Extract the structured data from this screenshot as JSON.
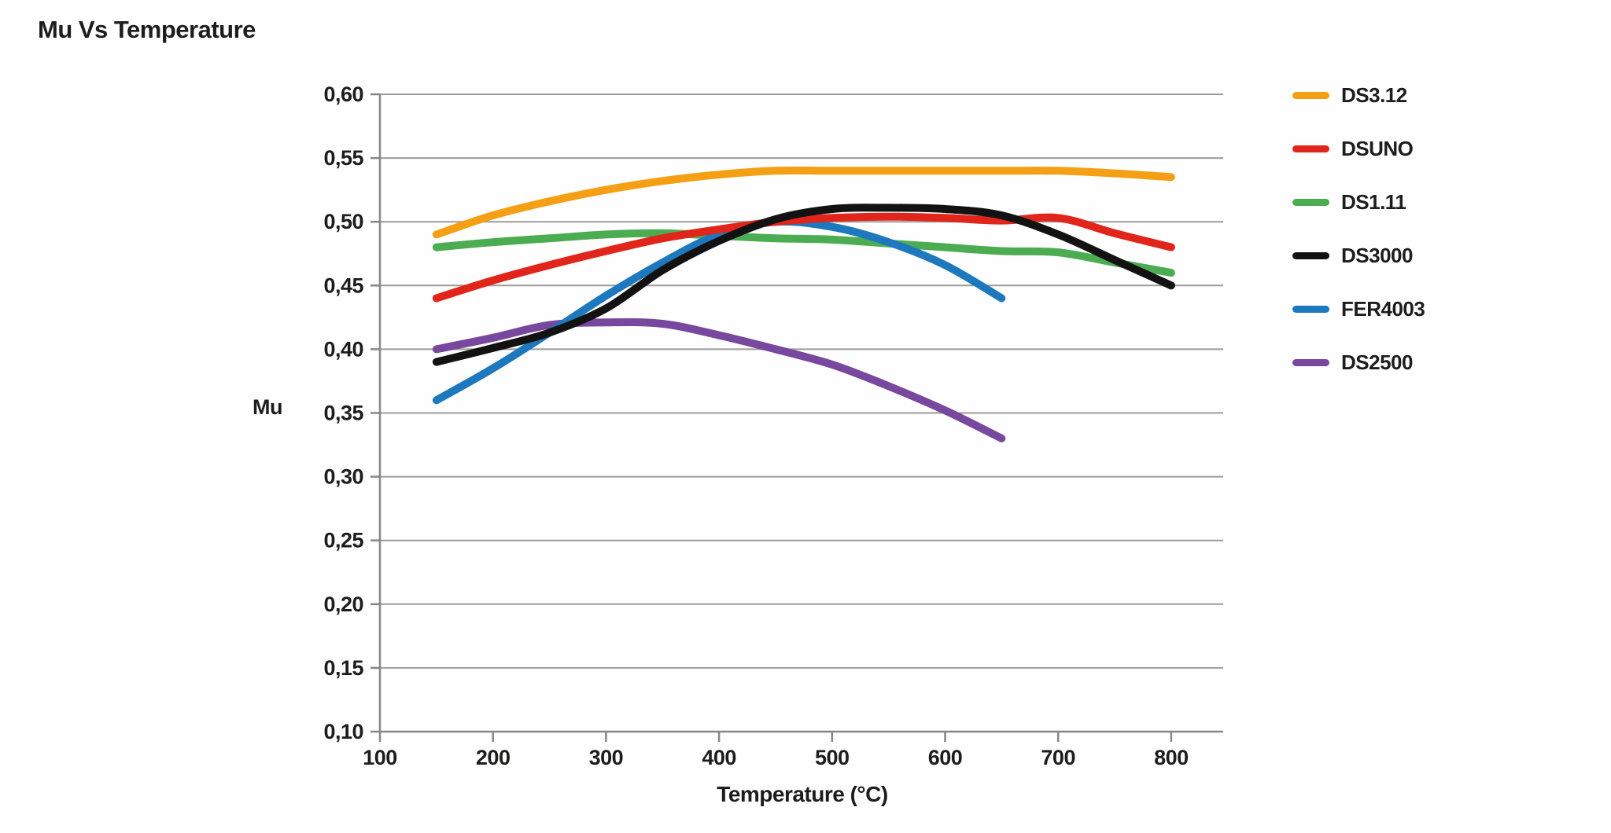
{
  "title": "Mu Vs Temperature",
  "axes": {
    "y_label": "Mu",
    "x_label": "Temperature (°C)",
    "y_tick_labels": [
      "0,60",
      "0,55",
      "0,50",
      "0,45",
      "0,40",
      "0,35",
      "0,30",
      "0,25",
      "0,20",
      "0,15",
      "0,10"
    ],
    "x_tick_labels": [
      "100",
      "200",
      "300",
      "400",
      "500",
      "600",
      "700",
      "800"
    ]
  },
  "colors": {
    "gridline": "#9c9c9b",
    "axis": "#878787",
    "text": "#1d1d1b",
    "background": "#fefefe"
  },
  "chart_data": {
    "type": "line",
    "title": "Mu Vs Temperature",
    "xlabel": "Temperature (°C)",
    "ylabel": "Mu",
    "xlim": [
      100,
      846
    ],
    "ylim": [
      0.1,
      0.6
    ],
    "x_ticks": [
      100,
      200,
      300,
      400,
      500,
      600,
      700,
      800
    ],
    "y_tick_step": 0.05,
    "decimal_separator": ",",
    "grid": "horizontal",
    "legend_position": "right",
    "line_width": 10,
    "draw_order": [
      "DS3.12",
      "DS2500",
      "DS1.11",
      "FER4003",
      "DSUNO",
      "DS3000"
    ],
    "series": [
      {
        "name": "DS3.12",
        "color": "#f5a014",
        "x": [
          150,
          200,
          250,
          300,
          350,
          400,
          450,
          500,
          550,
          600,
          650,
          700,
          750,
          800
        ],
        "values": [
          0.49,
          0.505,
          0.516,
          0.525,
          0.532,
          0.537,
          0.54,
          0.54,
          0.54,
          0.54,
          0.54,
          0.54,
          0.538,
          0.535
        ]
      },
      {
        "name": "DSUNO",
        "color": "#e1251b",
        "x": [
          150,
          200,
          250,
          300,
          350,
          400,
          450,
          500,
          550,
          600,
          650,
          700,
          750,
          800
        ],
        "values": [
          0.44,
          0.454,
          0.466,
          0.477,
          0.487,
          0.494,
          0.5,
          0.503,
          0.504,
          0.503,
          0.501,
          0.503,
          0.491,
          0.48
        ]
      },
      {
        "name": "DS1.11",
        "color": "#4cac52",
        "x": [
          150,
          200,
          250,
          300,
          350,
          400,
          450,
          500,
          550,
          600,
          650,
          700,
          750,
          800
        ],
        "values": [
          0.48,
          0.484,
          0.487,
          0.49,
          0.491,
          0.489,
          0.487,
          0.486,
          0.483,
          0.48,
          0.477,
          0.476,
          0.468,
          0.46
        ]
      },
      {
        "name": "DS3000",
        "color": "#121212",
        "x": [
          150,
          200,
          250,
          300,
          350,
          400,
          450,
          500,
          550,
          600,
          650,
          700,
          750,
          800
        ],
        "values": [
          0.39,
          0.401,
          0.413,
          0.432,
          0.462,
          0.485,
          0.502,
          0.51,
          0.511,
          0.51,
          0.505,
          0.49,
          0.47,
          0.45
        ]
      },
      {
        "name": "FER4003",
        "color": "#1d78be",
        "x": [
          150,
          200,
          250,
          300,
          350,
          400,
          450,
          500,
          550,
          600,
          650
        ],
        "values": [
          0.36,
          0.385,
          0.413,
          0.442,
          0.468,
          0.49,
          0.5,
          0.496,
          0.484,
          0.466,
          0.44
        ]
      },
      {
        "name": "DS2500",
        "color": "#77489d",
        "x": [
          150,
          200,
          250,
          300,
          350,
          400,
          450,
          500,
          550,
          600,
          650
        ],
        "values": [
          0.4,
          0.409,
          0.419,
          0.421,
          0.42,
          0.411,
          0.4,
          0.388,
          0.371,
          0.352,
          0.33
        ]
      }
    ]
  }
}
